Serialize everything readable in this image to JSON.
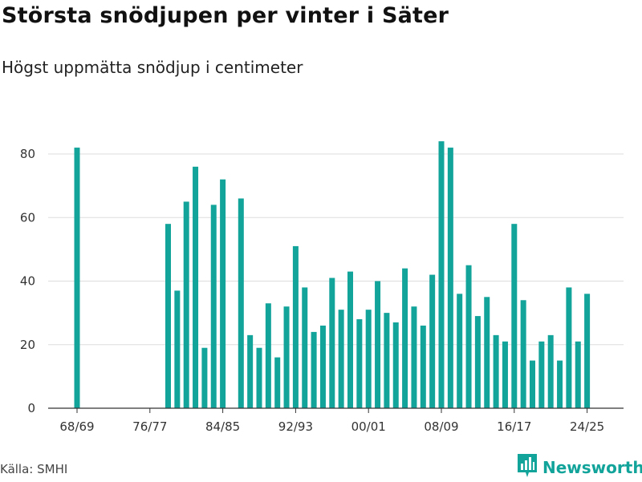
{
  "title": "Största snödjupen per vinter i Säter",
  "subtitle": "Högst uppmätta snödjup i centimeter",
  "source": "Källa: SMHI",
  "brand": {
    "name": "Newsworthy",
    "icon": "bar-chart-logo-icon"
  },
  "colors": {
    "bar": "#12a39b",
    "grid": "#dddddd",
    "axis": "#333333"
  },
  "chart_data": {
    "type": "bar",
    "title": "Största snödjupen per vinter i Säter",
    "subtitle": "Högst uppmätta snödjup i centimeter",
    "xlabel": "",
    "ylabel": "",
    "ylim": [
      0,
      85
    ],
    "yticks": [
      0,
      20,
      40,
      60,
      80
    ],
    "grid": true,
    "xtick_labels": [
      "68/69",
      "76/77",
      "84/85",
      "92/93",
      "00/01",
      "08/09",
      "16/17",
      "24/25"
    ],
    "categories": [
      "68/69",
      "69/70",
      "70/71",
      "71/72",
      "72/73",
      "73/74",
      "74/75",
      "75/76",
      "76/77",
      "77/78",
      "78/79",
      "79/80",
      "80/81",
      "81/82",
      "82/83",
      "83/84",
      "84/85",
      "85/86",
      "86/87",
      "87/88",
      "88/89",
      "89/90",
      "90/91",
      "91/92",
      "92/93",
      "93/94",
      "94/95",
      "95/96",
      "96/97",
      "97/98",
      "98/99",
      "99/00",
      "00/01",
      "01/02",
      "02/03",
      "03/04",
      "04/05",
      "05/06",
      "06/07",
      "07/08",
      "08/09",
      "09/10",
      "10/11",
      "11/12",
      "12/13",
      "13/14",
      "14/15",
      "15/16",
      "16/17",
      "17/18",
      "18/19",
      "19/20",
      "20/21",
      "21/22",
      "22/23",
      "23/24",
      "24/25"
    ],
    "series": [
      {
        "name": "Snödjup (cm)",
        "values": [
          82,
          null,
          null,
          null,
          null,
          null,
          null,
          null,
          null,
          null,
          58,
          37,
          65,
          76,
          19,
          64,
          72,
          null,
          66,
          23,
          19,
          33,
          16,
          32,
          51,
          38,
          24,
          26,
          41,
          31,
          43,
          28,
          31,
          40,
          30,
          27,
          44,
          32,
          26,
          42,
          84,
          82,
          36,
          45,
          29,
          35,
          23,
          21,
          58,
          34,
          15,
          21,
          23,
          15,
          38,
          21,
          36
        ]
      }
    ]
  }
}
